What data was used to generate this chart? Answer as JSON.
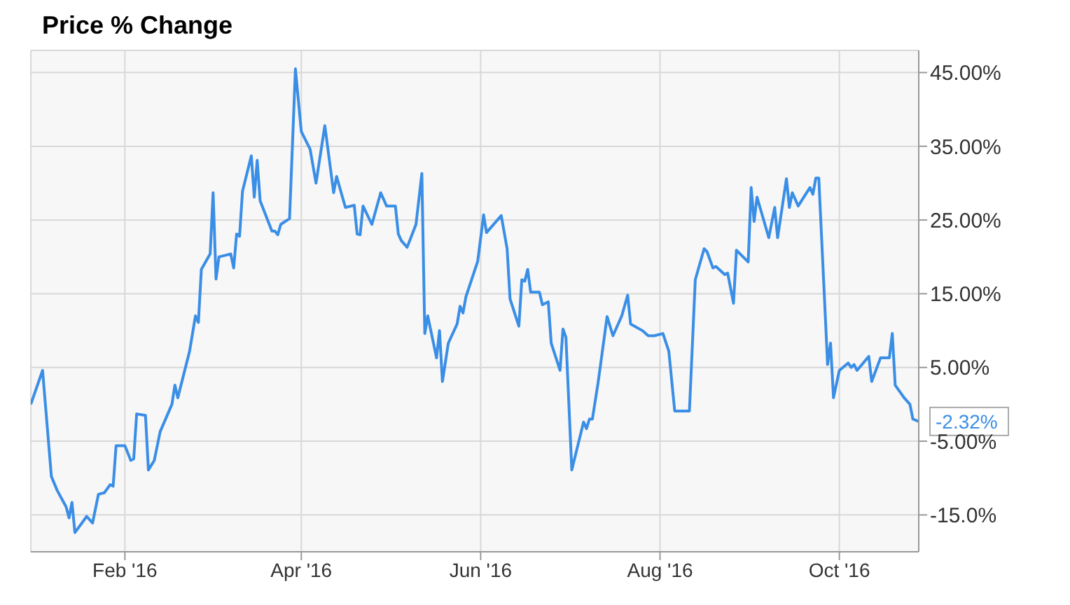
{
  "chart_data": {
    "type": "line",
    "title": "Price % Change",
    "x": [
      "2015-12-31",
      "2016-01-04",
      "2016-01-07",
      "2016-01-09",
      "2016-01-12",
      "2016-01-13",
      "2016-01-14",
      "2016-01-15",
      "2016-01-19",
      "2016-01-21",
      "2016-01-23",
      "2016-01-25",
      "2016-01-27",
      "2016-01-28",
      "2016-01-29",
      "2016-02-01",
      "2016-02-03",
      "2016-02-04",
      "2016-02-05",
      "2016-02-08",
      "2016-02-09",
      "2016-02-11",
      "2016-02-13",
      "2016-02-17",
      "2016-02-18",
      "2016-02-19",
      "2016-02-23",
      "2016-02-25",
      "2016-02-26",
      "2016-02-27",
      "2016-03-01",
      "2016-03-02",
      "2016-03-03",
      "2016-03-04",
      "2016-03-08",
      "2016-03-09",
      "2016-03-10",
      "2016-03-11",
      "2016-03-12",
      "2016-03-15",
      "2016-03-16",
      "2016-03-17",
      "2016-03-18",
      "2016-03-22",
      "2016-03-23",
      "2016-03-24",
      "2016-03-25",
      "2016-03-28",
      "2016-03-30",
      "2016-04-01",
      "2016-04-04",
      "2016-04-06",
      "2016-04-09",
      "2016-04-12",
      "2016-04-13",
      "2016-04-16",
      "2016-04-19",
      "2016-04-20",
      "2016-04-21",
      "2016-04-22",
      "2016-04-25",
      "2016-04-28",
      "2016-04-30",
      "2016-05-03",
      "2016-05-04",
      "2016-05-05",
      "2016-05-07",
      "2016-05-10",
      "2016-05-12",
      "2016-05-13",
      "2016-05-14",
      "2016-05-17",
      "2016-05-18",
      "2016-05-19",
      "2016-05-21",
      "2016-05-24",
      "2016-05-25",
      "2016-05-26",
      "2016-05-27",
      "2016-05-31",
      "2016-06-02",
      "2016-06-03",
      "2016-06-08",
      "2016-06-10",
      "2016-06-11",
      "2016-06-14",
      "2016-06-15",
      "2016-06-16",
      "2016-06-17",
      "2016-06-18",
      "2016-06-21",
      "2016-06-22",
      "2016-06-24",
      "2016-06-25",
      "2016-06-28",
      "2016-06-29",
      "2016-06-30",
      "2016-07-02",
      "2016-07-06",
      "2016-07-07",
      "2016-07-08",
      "2016-07-09",
      "2016-07-11",
      "2016-07-14",
      "2016-07-16",
      "2016-07-19",
      "2016-07-21",
      "2016-07-22",
      "2016-07-26",
      "2016-07-28",
      "2016-07-30",
      "2016-08-02",
      "2016-08-04",
      "2016-08-06",
      "2016-08-11",
      "2016-08-13",
      "2016-08-16",
      "2016-08-17",
      "2016-08-19",
      "2016-08-20",
      "2016-08-23",
      "2016-08-24",
      "2016-08-26",
      "2016-08-27",
      "2016-08-31",
      "2016-09-01",
      "2016-09-02",
      "2016-09-03",
      "2016-09-07",
      "2016-09-09",
      "2016-09-10",
      "2016-09-13",
      "2016-09-14",
      "2016-09-15",
      "2016-09-17",
      "2016-09-21",
      "2016-09-22",
      "2016-09-23",
      "2016-09-24",
      "2016-09-27",
      "2016-09-28",
      "2016-09-29",
      "2016-10-01",
      "2016-10-04",
      "2016-10-05",
      "2016-10-06",
      "2016-10-07",
      "2016-10-11",
      "2016-10-12",
      "2016-10-15",
      "2016-10-18",
      "2016-10-19",
      "2016-10-20",
      "2016-10-23",
      "2016-10-25",
      "2016-10-26",
      "2016-10-28"
    ],
    "series": [
      {
        "color": "#3a8ee6",
        "values": [
          0,
          4.6,
          -9.8,
          -11.7,
          -13.9,
          -15.4,
          -13.3,
          -17.4,
          -15.2,
          -16.1,
          -12.2,
          -12.0,
          -10.9,
          -11.1,
          -5.6,
          -5.6,
          -7.6,
          -7.4,
          -1.3,
          -1.5,
          -8.9,
          -7.6,
          -3.7,
          0.0,
          2.6,
          0.9,
          7.2,
          12.0,
          11.1,
          18.3,
          20.4,
          28.7,
          17.0,
          20.0,
          20.4,
          18.5,
          23.1,
          22.8,
          28.9,
          33.7,
          28.1,
          33.1,
          27.6,
          23.5,
          23.5,
          23.0,
          24.4,
          25.2,
          45.5,
          37.0,
          34.6,
          30.0,
          37.8,
          28.7,
          30.9,
          26.7,
          27.0,
          23.1,
          23.0,
          26.9,
          24.4,
          28.7,
          26.9,
          26.9,
          23.1,
          22.2,
          21.3,
          24.4,
          31.3,
          9.6,
          12.0,
          6.3,
          10.0,
          3.1,
          8.3,
          10.9,
          13.3,
          12.4,
          14.6,
          19.4,
          25.7,
          23.3,
          25.6,
          21.1,
          14.3,
          10.6,
          16.9,
          16.7,
          18.3,
          15.2,
          15.2,
          13.5,
          13.9,
          8.3,
          4.6,
          10.2,
          9.1,
          -8.9,
          -2.4,
          -3.3,
          -2.0,
          -2.0,
          3.1,
          11.9,
          9.3,
          12.0,
          14.8,
          10.9,
          10.0,
          9.3,
          9.3,
          9.6,
          7.2,
          -0.9,
          -0.9,
          16.9,
          21.1,
          20.7,
          18.5,
          18.7,
          17.6,
          17.8,
          13.7,
          20.9,
          19.3,
          29.4,
          24.8,
          28.1,
          22.6,
          26.7,
          22.6,
          30.6,
          26.7,
          28.7,
          26.9,
          29.4,
          28.5,
          30.7,
          30.7,
          5.4,
          8.3,
          0.9,
          4.6,
          5.6,
          5.0,
          5.4,
          4.6,
          6.5,
          3.1,
          6.3,
          6.3,
          9.6,
          2.6,
          0.9,
          0.0,
          -2.0,
          -2.32
        ]
      }
    ],
    "xlim": [
      "2015-12-31",
      "2016-10-28"
    ],
    "xticks": [
      {
        "value": "2016-02-01",
        "label": "Feb '16"
      },
      {
        "value": "2016-04-01",
        "label": "Apr '16"
      },
      {
        "value": "2016-06-01",
        "label": "Jun '16"
      },
      {
        "value": "2016-08-01",
        "label": "Aug '16"
      },
      {
        "value": "2016-10-01",
        "label": "Oct '16"
      }
    ],
    "ylim": [
      -20,
      48
    ],
    "yticks": [
      {
        "value": -15,
        "label": "-15.0%"
      },
      {
        "value": -5,
        "label": "-5.00%"
      },
      {
        "value": 5,
        "label": "5.00%"
      },
      {
        "value": 15,
        "label": "15.00%"
      },
      {
        "value": 25,
        "label": "25.00%"
      },
      {
        "value": 35,
        "label": "35.00%"
      },
      {
        "value": 45,
        "label": "45.00%"
      }
    ],
    "grid": true,
    "annotations": [
      {
        "text": "-2.32%",
        "x": "2016-10-28",
        "y": -2.32
      }
    ]
  }
}
